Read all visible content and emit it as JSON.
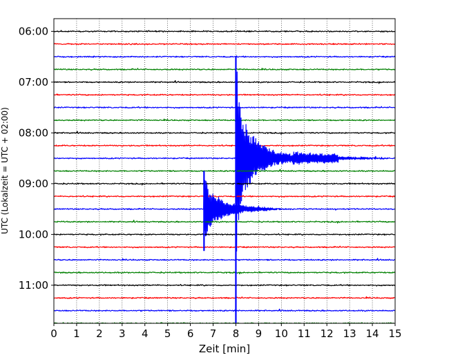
{
  "chart_data": {
    "type": "line",
    "title": "",
    "xlabel": "Zeit  [min]",
    "ylabel": "UTC (Lokalzeit = UTC + 02:00)",
    "xlim": [
      0,
      15
    ],
    "x_ticks": [
      0,
      1,
      2,
      3,
      4,
      5,
      6,
      7,
      8,
      9,
      10,
      11,
      12,
      13,
      14,
      15
    ],
    "y_time_range": [
      "05:45",
      "11:45"
    ],
    "y_tick_labels": [
      "06:00",
      "07:00",
      "08:00",
      "09:00",
      "10:00",
      "11:00"
    ],
    "trace_interval_minutes": 15,
    "trace_start_times": [
      "06:00",
      "06:15",
      "06:30",
      "06:45",
      "07:00",
      "07:15",
      "07:30",
      "07:45",
      "08:00",
      "08:15",
      "08:30",
      "08:45",
      "09:00",
      "09:15",
      "09:30",
      "09:45",
      "10:00",
      "10:15",
      "10:30",
      "10:45",
      "11:00",
      "11:15",
      "11:30",
      "11:45"
    ],
    "trace_colors": [
      "#000000",
      "#ff0000",
      "#0000ff",
      "#008000"
    ],
    "vertical_grid": "dotted",
    "events": [
      {
        "trace_start": "08:30",
        "onset_min": 8.0,
        "peak_amplitude_traces": 8.0,
        "decay_end_min": 15.0,
        "color": "#0000ff"
      },
      {
        "trace_start": "09:30",
        "onset_min": 6.6,
        "peak_amplitude_traces": 3.0,
        "decay_end_min": 10.0,
        "color": "#0000ff"
      }
    ]
  }
}
